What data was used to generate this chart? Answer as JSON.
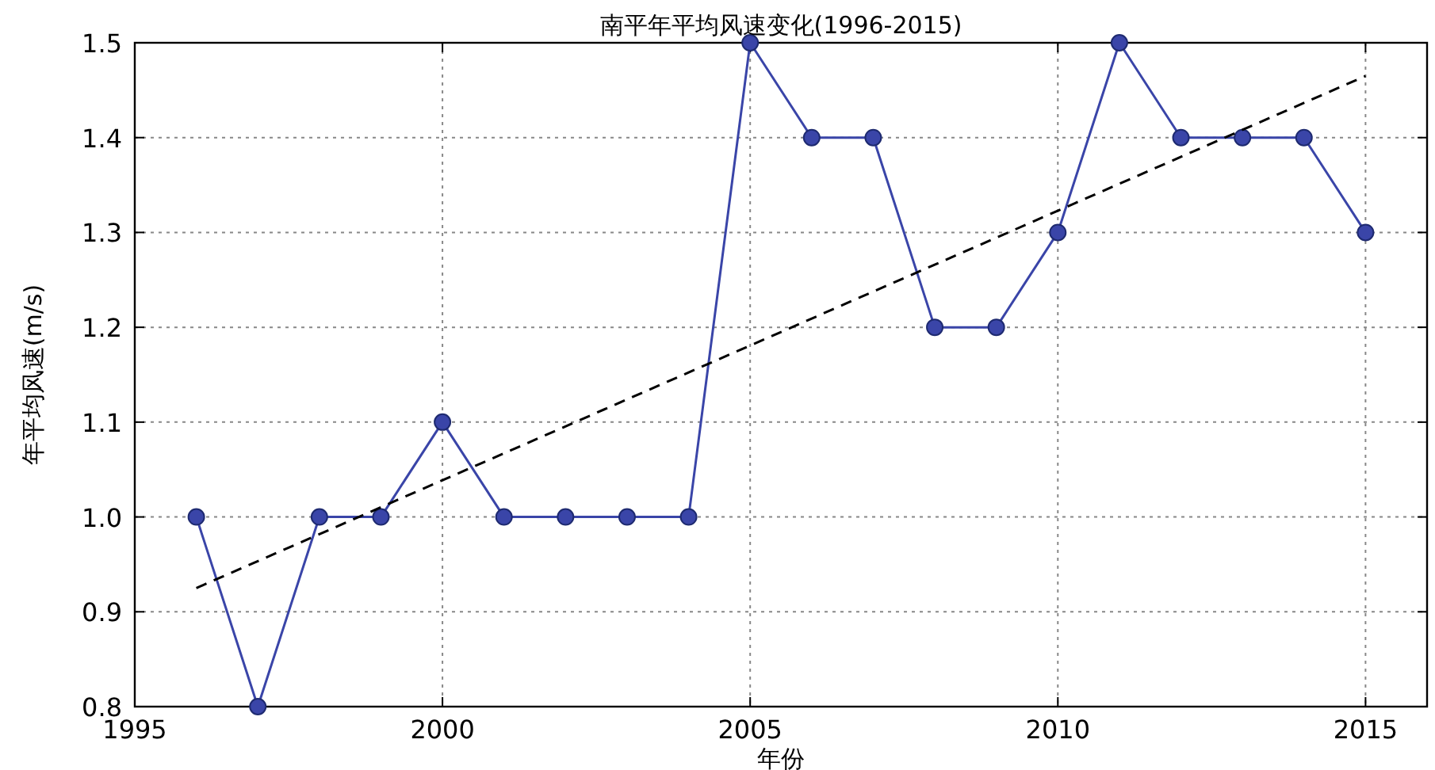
{
  "chart_data": {
    "type": "line",
    "title": "南平年平均风速变化(1996-2015)",
    "xlabel": "年份",
    "ylabel": "年平均风速(m/s)",
    "x": [
      1996,
      1997,
      1998,
      1999,
      2000,
      2001,
      2002,
      2003,
      2004,
      2005,
      2006,
      2007,
      2008,
      2009,
      2010,
      2011,
      2012,
      2013,
      2014,
      2015
    ],
    "series": [
      {
        "color": "#3a45a8",
        "values": [
          1.0,
          0.8,
          1.0,
          1.0,
          1.1,
          1.0,
          1.0,
          1.0,
          1.0,
          1.5,
          1.4,
          1.4,
          1.2,
          1.2,
          1.3,
          1.5,
          1.4,
          1.4,
          1.4,
          1.3
        ]
      },
      {
        "type": "line",
        "x": [
          1996,
          2015
        ],
        "values": [
          0.925,
          1.465
        ],
        "color": "#000000",
        "line_style": "dashed",
        "marker": "none"
      }
    ],
    "xlim": [
      1995,
      2016
    ],
    "xticks": [
      1995,
      2000,
      2005,
      2010,
      2015
    ],
    "ylim": [
      0.8,
      1.5
    ],
    "yticks": [
      0.8,
      0.9,
      {
        "value": 1.0,
        "label": "1.0"
      },
      1.1,
      1.2,
      1.3,
      1.4,
      1.5
    ],
    "grid": true,
    "marker": "circle",
    "line_style": "solid"
  }
}
